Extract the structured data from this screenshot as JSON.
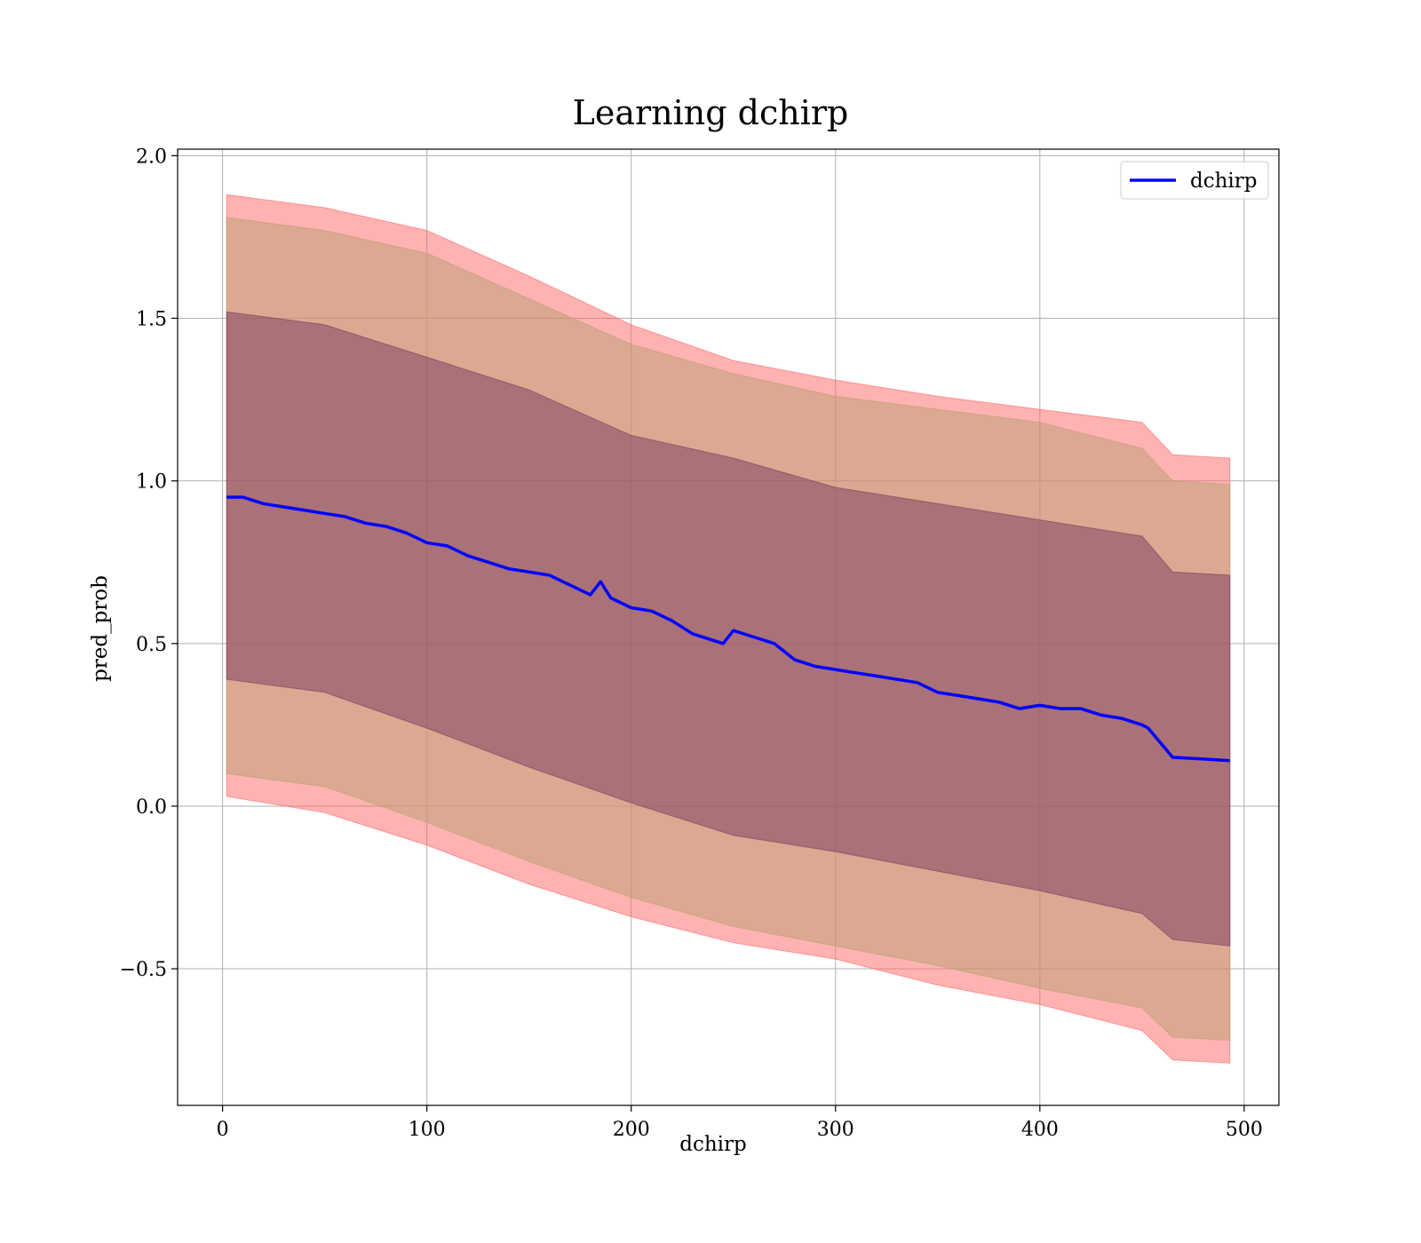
{
  "chart_data": {
    "type": "area",
    "title": "Learning dchirp",
    "xlabel": "dchirp",
    "ylabel": "pred_prob",
    "xlim": [
      -22,
      517
    ],
    "ylim": [
      -0.92,
      2.02
    ],
    "xticks": [
      0,
      100,
      200,
      300,
      400,
      500
    ],
    "xtick_labels": [
      "0",
      "100",
      "200",
      "300",
      "400",
      "500"
    ],
    "yticks": [
      -0.5,
      0.0,
      0.5,
      1.0,
      1.5,
      2.0
    ],
    "ytick_labels": [
      "−0.5",
      "0.0",
      "0.5",
      "1.0",
      "1.5",
      "2.0"
    ],
    "grid": true,
    "legend_position": "top-right",
    "series": [
      {
        "name": "dchirp",
        "color": "#0000ff",
        "x": [
          2,
          10,
          20,
          30,
          40,
          50,
          60,
          70,
          80,
          90,
          100,
          110,
          120,
          130,
          140,
          150,
          160,
          170,
          180,
          185,
          190,
          200,
          210,
          220,
          230,
          240,
          245,
          250,
          260,
          270,
          280,
          290,
          300,
          310,
          320,
          330,
          340,
          350,
          360,
          370,
          380,
          390,
          400,
          410,
          420,
          430,
          440,
          450,
          453,
          465,
          480,
          493
        ],
        "y": [
          0.95,
          0.95,
          0.93,
          0.92,
          0.91,
          0.9,
          0.89,
          0.87,
          0.86,
          0.84,
          0.81,
          0.8,
          0.77,
          0.75,
          0.73,
          0.72,
          0.71,
          0.68,
          0.65,
          0.69,
          0.64,
          0.61,
          0.6,
          0.57,
          0.53,
          0.51,
          0.5,
          0.54,
          0.52,
          0.5,
          0.45,
          0.43,
          0.42,
          0.41,
          0.4,
          0.39,
          0.38,
          0.35,
          0.34,
          0.33,
          0.32,
          0.3,
          0.31,
          0.3,
          0.3,
          0.28,
          0.27,
          0.25,
          0.24,
          0.15,
          0.145,
          0.14
        ]
      }
    ],
    "bands": {
      "x": [
        2,
        50,
        100,
        150,
        200,
        250,
        300,
        350,
        400,
        450,
        465,
        493
      ],
      "outer": {
        "color": "#ff6666",
        "opacity": 0.5,
        "upper": [
          1.88,
          1.84,
          1.77,
          1.63,
          1.48,
          1.37,
          1.31,
          1.26,
          1.22,
          1.18,
          1.08,
          1.07
        ],
        "lower": [
          0.03,
          -0.02,
          -0.12,
          -0.24,
          -0.34,
          -0.42,
          -0.47,
          -0.55,
          -0.61,
          -0.69,
          -0.78,
          -0.79
        ]
      },
      "middle": {
        "color": "#b8a070",
        "opacity": 0.5,
        "upper": [
          1.81,
          1.77,
          1.7,
          1.56,
          1.42,
          1.33,
          1.26,
          1.22,
          1.18,
          1.1,
          1.0,
          0.99
        ],
        "lower": [
          0.1,
          0.06,
          -0.05,
          -0.17,
          -0.28,
          -0.37,
          -0.43,
          -0.49,
          -0.56,
          -0.62,
          -0.71,
          -0.72
        ]
      },
      "inner": {
        "color": "#7a3a60",
        "opacity": 0.5,
        "upper": [
          1.52,
          1.48,
          1.38,
          1.28,
          1.14,
          1.07,
          0.98,
          0.93,
          0.88,
          0.83,
          0.72,
          0.71
        ],
        "lower": [
          0.39,
          0.35,
          0.24,
          0.12,
          0.01,
          -0.09,
          -0.14,
          -0.2,
          -0.26,
          -0.33,
          -0.41,
          -0.43
        ]
      }
    }
  }
}
